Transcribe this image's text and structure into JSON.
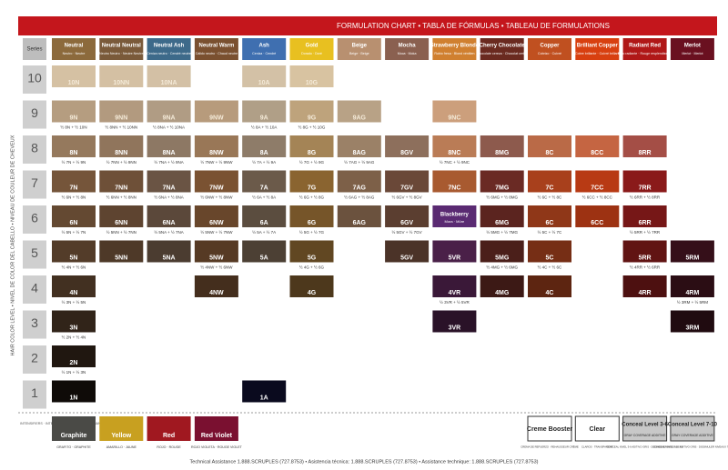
{
  "banner": "FORMULATION CHART • TABLA DE FÓRMULAS • TABLEAU DE FORMULATIONS",
  "side_label": "HAIR COLOR LEVEL • NIVEL DE COLOR DEL CABELLO • NIVEAU DE COULEUR DE CHEVEUX",
  "series_header": "Series",
  "columns": [
    {
      "name": "Neutral",
      "sub": "Neutro · Neutre",
      "color": "#8c6a3c",
      "tone": "#75553a"
    },
    {
      "name": "Neutral Neutral",
      "sub": "Neutro Neutro · Neutre Neutre",
      "color": "#7a5a3a",
      "tone": "#6e5038"
    },
    {
      "name": "Neutral Ash",
      "sub": "Ceniza neutro · Cendré neutre",
      "color": "#3d6a8a",
      "tone": "#6a5444"
    },
    {
      "name": "Neutral Warm",
      "sub": "Cálido neutro · Chaud neutre",
      "color": "#7a5030",
      "tone": "#7a5232"
    },
    {
      "name": "Ash",
      "sub": "Ceniza · Cendré",
      "color": "#3f6fb0",
      "tone": "#6b5a4a"
    },
    {
      "name": "Gold",
      "sub": "Dorado · Doré",
      "color": "#e8c020",
      "tone": "#8a6430"
    },
    {
      "name": "Beige",
      "sub": "Beige · Beige",
      "color": "#b89070",
      "tone": "#7d6048"
    },
    {
      "name": "Mocha",
      "sub": "Moca · Moka",
      "color": "#8a6050",
      "tone": "#6a4838"
    },
    {
      "name": "Strawberry Blonde",
      "sub": "Rubio fresa · Blond vénitien",
      "color": "#d08030",
      "tone": "#a85a30"
    },
    {
      "name": "Cherry Chocolate",
      "sub": "Chocolate cereza · Chocolat cerise",
      "color": "#6a2a20",
      "tone": "#6a2a24"
    },
    {
      "name": "Copper",
      "sub": "Cobrizo · Cuivré",
      "color": "#c05020",
      "tone": "#a8401c"
    },
    {
      "name": "Brilliant Copper",
      "sub": "Cobre brillante · Cuivré brillant",
      "color": "#d84010",
      "tone": "#b83a14"
    },
    {
      "name": "Radiant Red",
      "sub": "Rojo radiante · Rouge resplendissant",
      "color": "#b01818",
      "tone": "#8a1a1a"
    },
    {
      "name": "Merlot",
      "sub": "Merlot · Merlot",
      "color": "#6a1020",
      "tone": "#4a1422"
    }
  ],
  "rows": [
    {
      "level": "10",
      "cells": [
        {
          "label": "10N"
        },
        {
          "label": "10NN"
        },
        {
          "label": "10NA"
        },
        null,
        {
          "label": "10A"
        },
        {
          "label": "10G"
        },
        null,
        null,
        null,
        null,
        null,
        null,
        null,
        null
      ]
    },
    {
      "level": "9",
      "cells": [
        {
          "label": "9N",
          "mix": "½ 8N + ½ 10N"
        },
        {
          "label": "9NN",
          "mix": "½ 8NN + ½ 10NN"
        },
        {
          "label": "9NA",
          "mix": "½ 8NA + ½ 10NA"
        },
        {
          "label": "9NW"
        },
        {
          "label": "9A",
          "mix": "½ 8A + ½ 10A"
        },
        {
          "label": "9G",
          "mix": "½ 8G + ½ 10G"
        },
        {
          "label": "9AG"
        },
        null,
        {
          "label": "9NC"
        },
        null,
        null,
        null,
        null,
        null
      ]
    },
    {
      "level": "8",
      "cells": [
        {
          "label": "8N",
          "mix": "½ 7N + ½ 9N"
        },
        {
          "label": "8NN",
          "mix": "½ 7NN + ½ 9NN"
        },
        {
          "label": "8NA",
          "mix": "½ 7NA + ½ 9NA"
        },
        {
          "label": "8NW",
          "mix": "½ 7NW + ½ 9NW"
        },
        {
          "label": "8A",
          "mix": "½ 7A + ½ 9A"
        },
        {
          "label": "8G",
          "mix": "½ 7G + ½ 9G"
        },
        {
          "label": "8AG",
          "mix": "½ 7AG + ½ 9AG"
        },
        {
          "label": "8GV"
        },
        {
          "label": "8NC",
          "mix": "½ 7NC + ½ 9NC"
        },
        {
          "label": "8MG"
        },
        {
          "label": "8C"
        },
        {
          "label": "8CC"
        },
        {
          "label": "8RR"
        },
        null
      ]
    },
    {
      "level": "7",
      "cells": [
        {
          "label": "7N",
          "mix": "½ 6N + ½ 8N"
        },
        {
          "label": "7NN",
          "mix": "½ 6NN + ½ 8NN"
        },
        {
          "label": "7NA",
          "mix": "½ 6NA + ½ 8NA"
        },
        {
          "label": "7NW",
          "mix": "½ 6NW + ½ 8NW"
        },
        {
          "label": "7A",
          "mix": "½ 6A + ½ 8A"
        },
        {
          "label": "7G",
          "mix": "½ 6G + ½ 8G"
        },
        {
          "label": "7AG",
          "mix": "½ 6AG + ½ 8AG"
        },
        {
          "label": "7GV",
          "mix": "½ 6GV + ½ 8GV"
        },
        {
          "label": "7NC"
        },
        {
          "label": "7MG",
          "mix": "½ 6MG + ½ 8MG"
        },
        {
          "label": "7C",
          "mix": "½ 6C + ½ 8C"
        },
        {
          "label": "7CC",
          "mix": "½ 6CC + ½ 8CC"
        },
        {
          "label": "7RR",
          "mix": "½ 6RR + ½ 8RR"
        },
        null
      ]
    },
    {
      "level": "6",
      "cells": [
        {
          "label": "6N",
          "mix": "½ 5N + ½ 7N"
        },
        {
          "label": "6NN",
          "mix": "½ 5NN + ½ 7NN"
        },
        {
          "label": "6NA",
          "mix": "½ 5NA + ½ 7NA"
        },
        {
          "label": "6NW",
          "mix": "½ 5NW + ½ 7NW"
        },
        {
          "label": "6A",
          "mix": "½ 5A + ½ 7A"
        },
        {
          "label": "6G",
          "mix": "½ 5G + ½ 7G"
        },
        {
          "label": "6AG"
        },
        {
          "label": "6GV",
          "mix": "½ 5GV + ½ 7GV"
        },
        {
          "label": "Blackberry",
          "sub": "Mora · Mûre",
          "color": "#5a2a72"
        },
        {
          "label": "6MG",
          "mix": "½ 5MG + ½ 7MG"
        },
        {
          "label": "6C",
          "mix": "½ 5C + ½ 7C"
        },
        {
          "label": "6CC"
        },
        {
          "label": "6RR",
          "mix": "½ 5RR + ½ 7RR"
        },
        null
      ]
    },
    {
      "level": "5",
      "cells": [
        {
          "label": "5N",
          "mix": "½ 4N + ½ 6N"
        },
        {
          "label": "5NN"
        },
        {
          "label": "5NA"
        },
        {
          "label": "5NW",
          "mix": "½ 4NW + ½ 6NW"
        },
        {
          "label": "5A"
        },
        {
          "label": "5G",
          "mix": "½ 4G + ½ 6G"
        },
        null,
        {
          "label": "5GV"
        },
        {
          "label": "5VR",
          "color": "#4a2048"
        },
        {
          "label": "5MG",
          "mix": "½ 4MG + ½ 6MG"
        },
        {
          "label": "5C",
          "mix": "½ 4C + ½ 6C"
        },
        null,
        {
          "label": "5RR",
          "mix": "½ 4RR + ½ 6RR"
        },
        {
          "label": "5RM"
        }
      ]
    },
    {
      "level": "4",
      "cells": [
        {
          "label": "4N",
          "mix": "½ 3N + ½ 5N"
        },
        null,
        null,
        {
          "label": "4NW"
        },
        null,
        {
          "label": "4G"
        },
        null,
        null,
        {
          "label": "4VR",
          "mix": "½ 3VR + ½ 5VR",
          "color": "#3a1838"
        },
        {
          "label": "4MG"
        },
        {
          "label": "4C"
        },
        null,
        {
          "label": "4RR"
        },
        {
          "label": "4RM",
          "mix": "½ 3RM + ½ 5RM"
        }
      ]
    },
    {
      "level": "3",
      "cells": [
        {
          "label": "3N",
          "mix": "½ 2N + ½ 4N"
        },
        null,
        null,
        null,
        null,
        null,
        null,
        null,
        {
          "label": "3VR",
          "color": "#2a1228"
        },
        null,
        null,
        null,
        null,
        {
          "label": "3RM"
        }
      ]
    },
    {
      "level": "2",
      "cells": [
        {
          "label": "2N",
          "mix": "½ 1N + ½ 3N"
        },
        null,
        null,
        null,
        null,
        null,
        null,
        null,
        null,
        null,
        null,
        null,
        null,
        null
      ]
    },
    {
      "level": "1",
      "cells": [
        {
          "label": "1N"
        },
        null,
        null,
        null,
        {
          "label": "1A",
          "color": "#0a0a1e"
        },
        null,
        null,
        null,
        null,
        null,
        null,
        null,
        null,
        null
      ]
    }
  ],
  "intensifiers": {
    "label": "INTENSIFIERS · INTENSIFICADORES · INTENSIFIANTS",
    "items": [
      {
        "name": "Graphite",
        "sub": "GRAFITO · GRAPHITE",
        "color": "#4a4a46"
      },
      {
        "name": "Yellow",
        "sub": "AMARILLO · JAUNE",
        "color": "#c8a020"
      },
      {
        "name": "Red",
        "sub": "ROJO · ROUGE",
        "color": "#a01820"
      },
      {
        "name": "Red Violet",
        "sub": "ROJO VIOLETA · ROUGE VIOLET",
        "color": "#7a1030"
      }
    ]
  },
  "additives": [
    {
      "name": "Creme Booster",
      "sub": "CREMA DE REFUERZO · REHAUSSEUR CRÈME",
      "color": "#ffffff"
    },
    {
      "name": "Clear",
      "sub": "CLAROS · TRANSPARENT",
      "color": "#ffffff"
    },
    {
      "name": "Conceal Level 3-6",
      "tag": "GRAY COVERAGE ADDITIVE",
      "sub": "CONCEAL NIVEL 3-6 ADITIVO GRIS · DISSIMULER NIVEAUX 3-6",
      "color": "#c8c8c8"
    },
    {
      "name": "Conceal Level 7-10",
      "tag": "GRAY COVERAGE ADDITIVE",
      "sub": "CONCEAL NIVEL 7-10 ADITIVO GRIS · DISSIMULER NIVEAUX 7-10",
      "color": "#c8c8c8"
    }
  ],
  "footer": "Technical Assistance 1.888.SCRUPLES (727.8753) • Asistencia técnica: 1.888.SCRUPLES (727.8753) • Assistance technique: 1.888.SCRUPLES (727.8753)"
}
